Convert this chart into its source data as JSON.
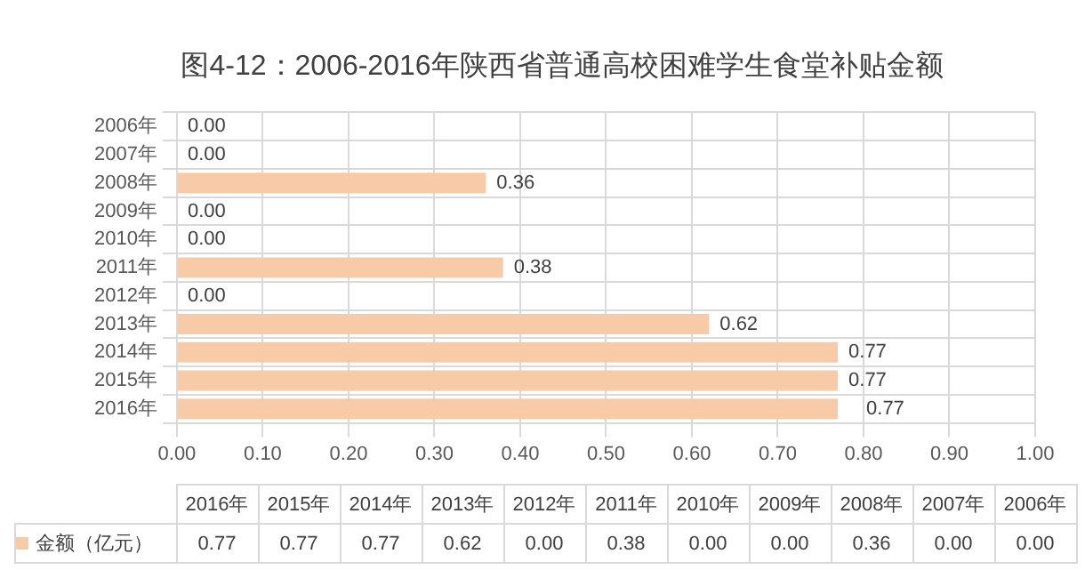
{
  "chart_data": {
    "type": "bar",
    "orientation": "horizontal",
    "title": "图4-12：2006-2016年陕西省普通高校困难学生食堂补贴金额",
    "categories": [
      "2006年",
      "2007年",
      "2008年",
      "2009年",
      "2010年",
      "2011年",
      "2012年",
      "2013年",
      "2014年",
      "2015年",
      "2016年"
    ],
    "series": [
      {
        "name": "金额（亿元）",
        "color": "#f8cba8",
        "values": [
          0,
          0,
          0.36,
          0,
          0,
          0.38,
          0,
          0.62,
          0.77,
          0.77,
          0.77
        ],
        "value_labels": [
          "0.00",
          "0.00",
          "0.36",
          "0.00",
          "0.00",
          "0.38",
          "0.00",
          "0.62",
          "0.77",
          "0.77",
          "0.77"
        ]
      }
    ],
    "xlim": [
      0,
      1
    ],
    "xticks": [
      {
        "value": 0,
        "label": "0.00"
      },
      {
        "value": 0.1,
        "label": "0.10"
      },
      {
        "value": 0.2,
        "label": "0.20"
      },
      {
        "value": 0.3,
        "label": "0.30"
      },
      {
        "value": 0.4,
        "label": "0.40"
      },
      {
        "value": 0.5,
        "label": "0.50"
      },
      {
        "value": 0.6,
        "label": "0.60"
      },
      {
        "value": 0.7,
        "label": "0.70"
      },
      {
        "value": 0.8,
        "label": "0.80"
      },
      {
        "value": 0.9,
        "label": "0.90"
      },
      {
        "value": 1,
        "label": "1.00"
      }
    ],
    "grid": true,
    "legend": "bottom"
  }
}
